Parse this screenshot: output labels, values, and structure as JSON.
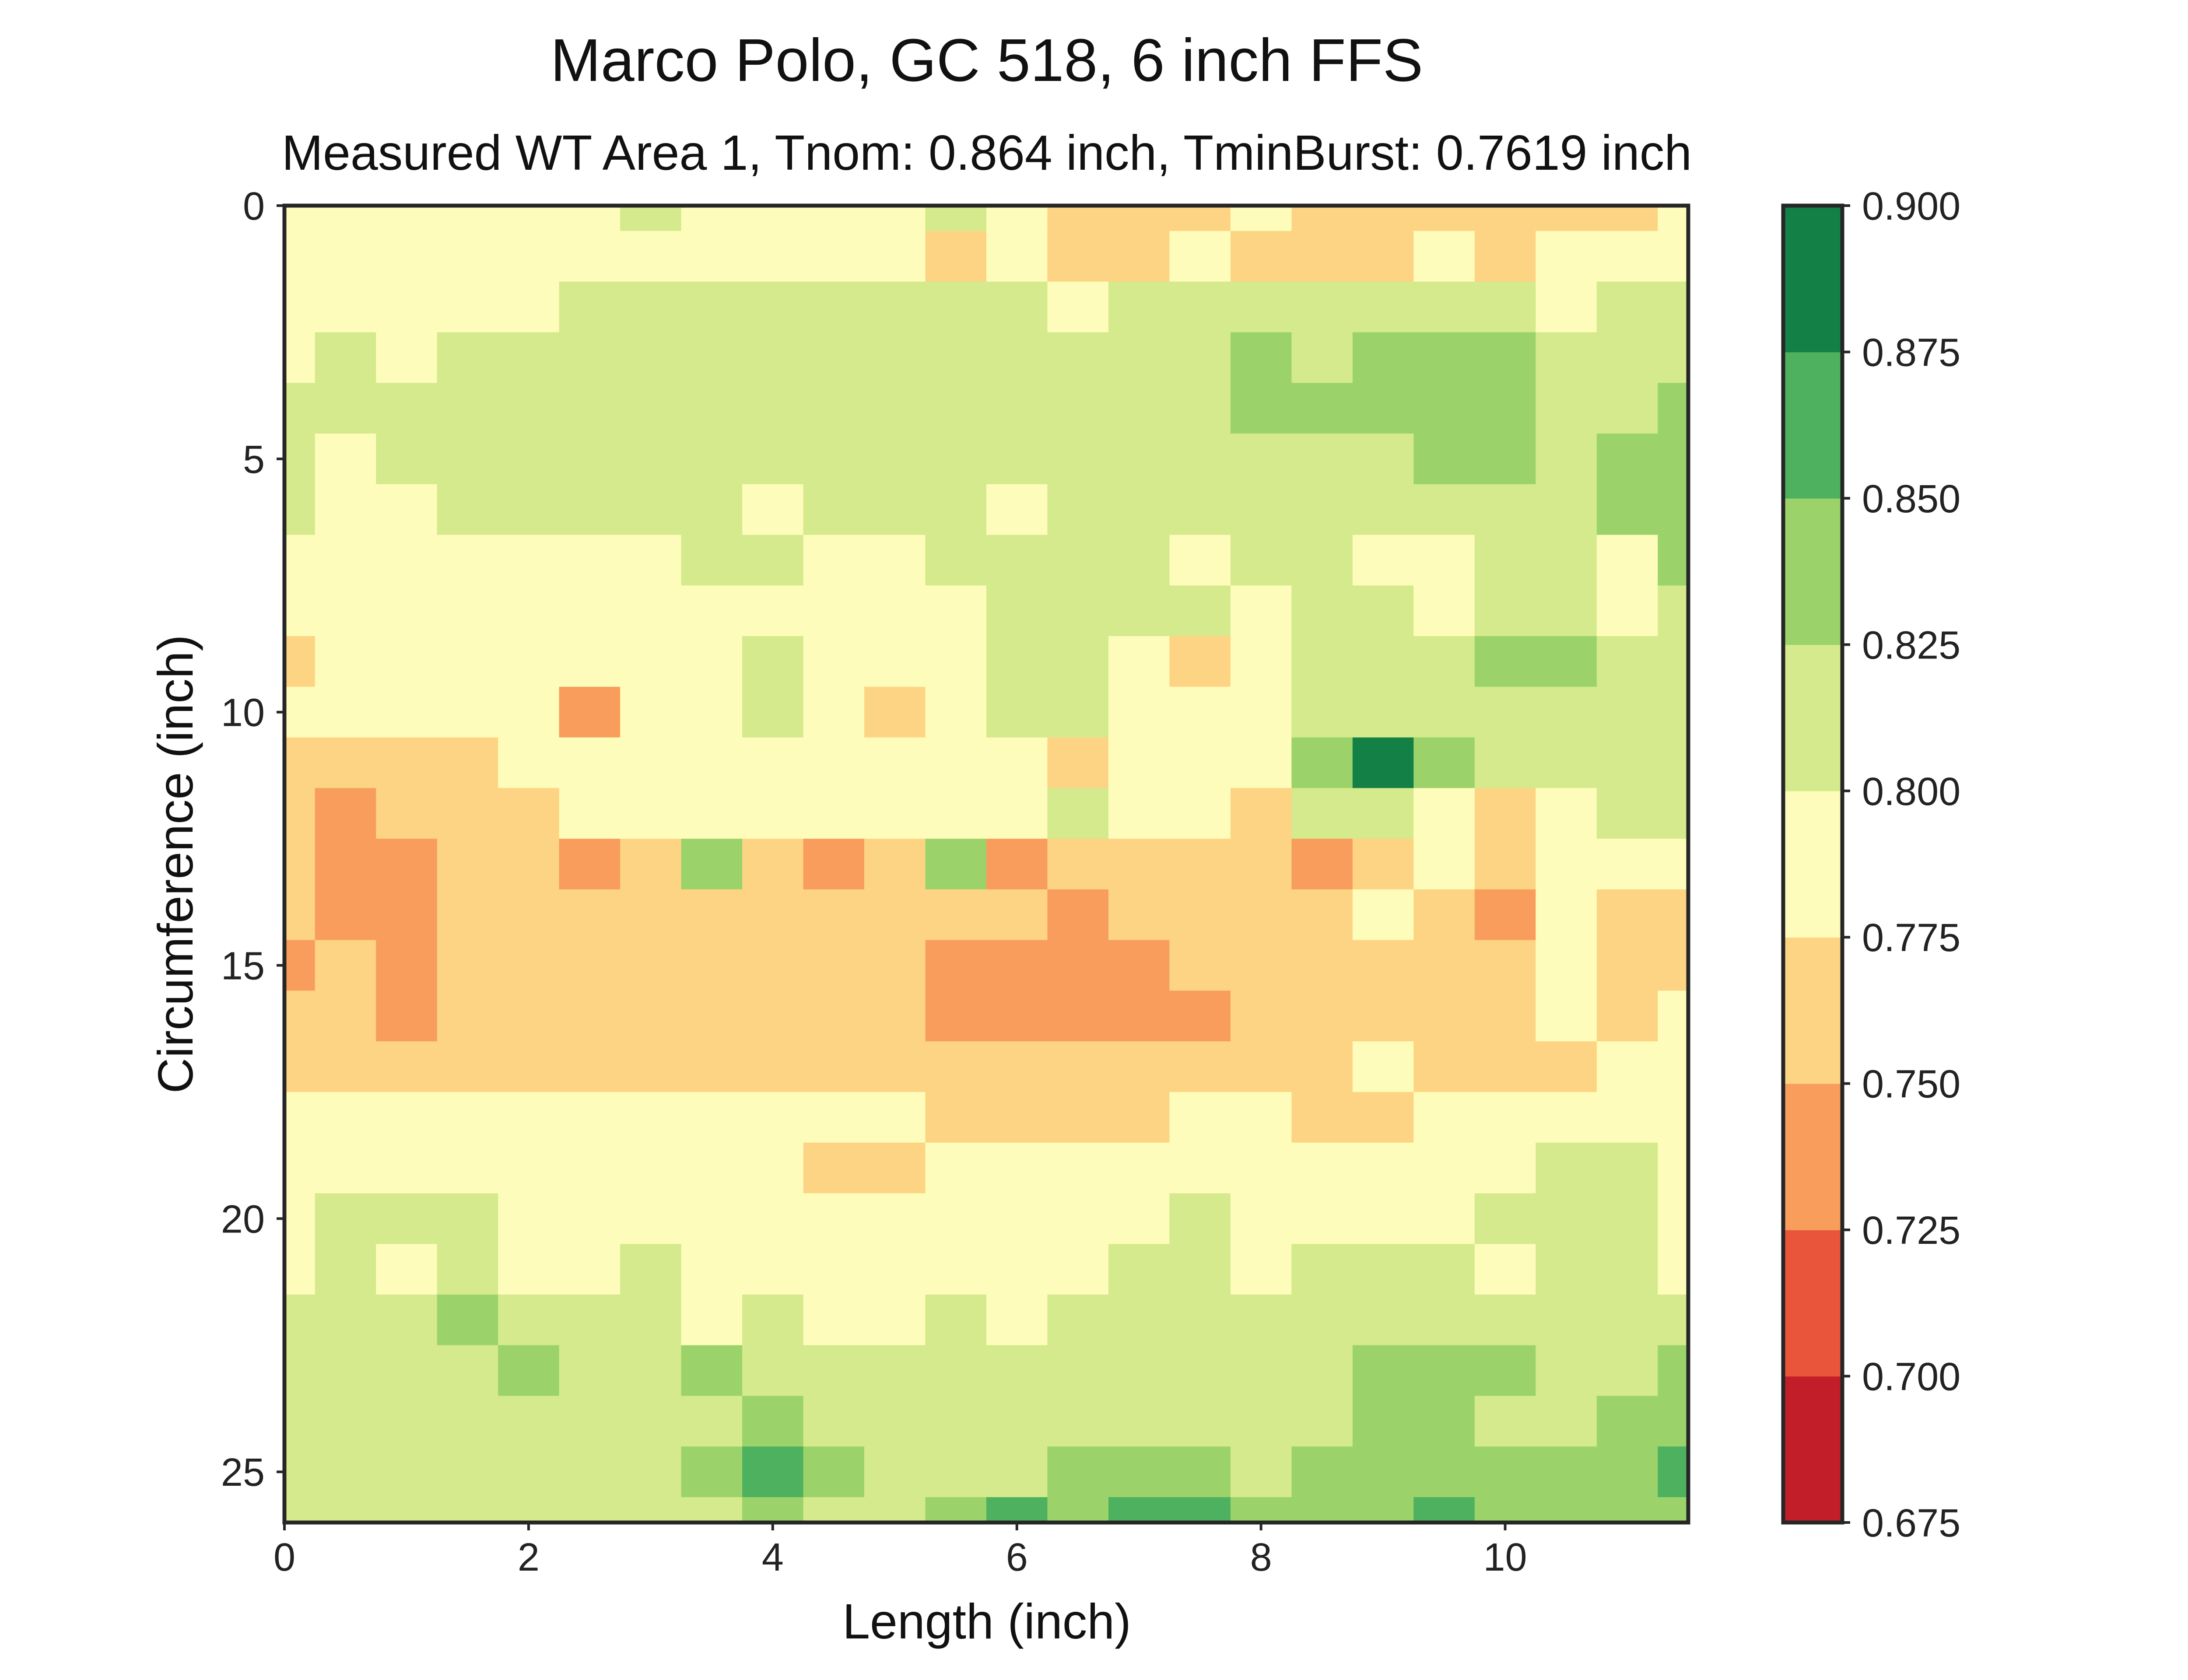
{
  "chart_data": {
    "type": "heatmap",
    "title": "Marco Polo, GC 518, 6 inch FFS",
    "subtitle": "Measured WT Area 1, Tnom: 0.864 inch, TminBurst: 0.7619 inch",
    "xlabel": "Length (inch)",
    "ylabel": "Circumference (inch)",
    "xlim": [
      0,
      11.5
    ],
    "ylim": [
      26,
      0
    ],
    "x_ticks": [
      "0",
      "2",
      "4",
      "6",
      "8",
      "10"
    ],
    "x_tick_values": [
      0,
      2,
      4,
      6,
      8,
      10
    ],
    "y_ticks": [
      "0",
      "5",
      "10",
      "15",
      "20",
      "25"
    ],
    "y_tick_values": [
      0,
      5,
      10,
      15,
      20,
      25
    ],
    "colorbar": {
      "levels": [
        0.675,
        0.7,
        0.725,
        0.75,
        0.775,
        0.8,
        0.825,
        0.85,
        0.875,
        0.9
      ],
      "labels": [
        "0.675",
        "0.700",
        "0.725",
        "0.750",
        "0.775",
        "0.800",
        "0.825",
        "0.850",
        "0.875",
        "0.900"
      ],
      "colors": [
        "#c11e2a",
        "#e8553a",
        "#f89d5b",
        "#fdd484",
        "#fefcbb",
        "#d4ea8c",
        "#9bd36a",
        "#4eb15f",
        "#138045"
      ]
    },
    "x_step": 0.5,
    "y_step": 1,
    "grid": false,
    "z": [
      [
        0.79,
        0.79,
        0.79,
        0.795,
        0.79,
        0.79,
        0.8,
        0.79,
        0.79,
        0.79,
        0.79,
        0.8,
        0.785,
        0.77,
        0.77,
        0.77,
        0.78,
        0.77,
        0.765,
        0.77,
        0.76,
        0.765,
        0.76,
        0.79
      ],
      [
        0.79,
        0.79,
        0.79,
        0.79,
        0.79,
        0.79,
        0.79,
        0.79,
        0.78,
        0.78,
        0.78,
        0.77,
        0.78,
        0.77,
        0.765,
        0.78,
        0.77,
        0.765,
        0.77,
        0.78,
        0.77,
        0.78,
        0.79,
        0.79
      ],
      [
        0.79,
        0.785,
        0.78,
        0.79,
        0.795,
        0.8,
        0.805,
        0.805,
        0.8,
        0.805,
        0.81,
        0.8,
        0.805,
        0.795,
        0.8,
        0.8,
        0.8,
        0.805,
        0.805,
        0.805,
        0.8,
        0.79,
        0.8,
        0.805
      ],
      [
        0.79,
        0.8,
        0.795,
        0.805,
        0.81,
        0.81,
        0.815,
        0.815,
        0.81,
        0.81,
        0.81,
        0.81,
        0.815,
        0.815,
        0.82,
        0.82,
        0.825,
        0.82,
        0.825,
        0.825,
        0.825,
        0.82,
        0.815,
        0.82
      ],
      [
        0.8,
        0.805,
        0.81,
        0.81,
        0.81,
        0.815,
        0.815,
        0.81,
        0.81,
        0.815,
        0.815,
        0.815,
        0.815,
        0.81,
        0.815,
        0.82,
        0.825,
        0.83,
        0.83,
        0.83,
        0.825,
        0.815,
        0.82,
        0.83
      ],
      [
        0.8,
        0.79,
        0.8,
        0.81,
        0.81,
        0.81,
        0.81,
        0.81,
        0.815,
        0.815,
        0.805,
        0.815,
        0.81,
        0.815,
        0.81,
        0.81,
        0.815,
        0.82,
        0.82,
        0.825,
        0.825,
        0.815,
        0.825,
        0.83
      ],
      [
        0.8,
        0.795,
        0.79,
        0.805,
        0.81,
        0.81,
        0.805,
        0.8,
        0.79,
        0.81,
        0.8,
        0.81,
        0.79,
        0.81,
        0.8,
        0.805,
        0.81,
        0.815,
        0.815,
        0.81,
        0.815,
        0.82,
        0.825,
        0.83
      ],
      [
        0.79,
        0.785,
        0.79,
        0.78,
        0.79,
        0.79,
        0.79,
        0.8,
        0.8,
        0.79,
        0.79,
        0.8,
        0.805,
        0.815,
        0.81,
        0.795,
        0.8,
        0.8,
        0.79,
        0.79,
        0.81,
        0.8,
        0.79,
        0.825
      ],
      [
        0.79,
        0.78,
        0.79,
        0.78,
        0.79,
        0.785,
        0.79,
        0.79,
        0.79,
        0.79,
        0.795,
        0.785,
        0.8,
        0.82,
        0.815,
        0.8,
        0.79,
        0.8,
        0.8,
        0.795,
        0.815,
        0.81,
        0.79,
        0.82
      ],
      [
        0.77,
        0.79,
        0.79,
        0.78,
        0.79,
        0.785,
        0.785,
        0.79,
        0.8,
        0.795,
        0.795,
        0.79,
        0.805,
        0.81,
        0.79,
        0.77,
        0.79,
        0.8,
        0.805,
        0.81,
        0.84,
        0.825,
        0.8,
        0.82
      ],
      [
        0.78,
        0.79,
        0.79,
        0.785,
        0.79,
        0.74,
        0.79,
        0.79,
        0.815,
        0.79,
        0.77,
        0.79,
        0.805,
        0.805,
        0.79,
        0.795,
        0.79,
        0.81,
        0.815,
        0.81,
        0.82,
        0.815,
        0.82,
        0.815
      ],
      [
        0.77,
        0.76,
        0.765,
        0.77,
        0.785,
        0.79,
        0.79,
        0.79,
        0.79,
        0.79,
        0.79,
        0.79,
        0.79,
        0.765,
        0.79,
        0.79,
        0.79,
        0.83,
        0.89,
        0.84,
        0.82,
        0.815,
        0.82,
        0.82
      ],
      [
        0.76,
        0.74,
        0.76,
        0.76,
        0.77,
        0.79,
        0.79,
        0.79,
        0.79,
        0.79,
        0.78,
        0.79,
        0.79,
        0.815,
        0.785,
        0.78,
        0.77,
        0.815,
        0.805,
        0.795,
        0.765,
        0.79,
        0.8,
        0.81
      ],
      [
        0.76,
        0.74,
        0.745,
        0.76,
        0.77,
        0.74,
        0.76,
        0.83,
        0.77,
        0.74,
        0.77,
        0.83,
        0.74,
        0.765,
        0.76,
        0.77,
        0.76,
        0.74,
        0.765,
        0.775,
        0.765,
        0.775,
        0.79,
        0.79
      ],
      [
        0.76,
        0.745,
        0.745,
        0.76,
        0.76,
        0.76,
        0.76,
        0.76,
        0.76,
        0.76,
        0.76,
        0.76,
        0.76,
        0.74,
        0.755,
        0.76,
        0.76,
        0.77,
        0.79,
        0.765,
        0.735,
        0.785,
        0.77,
        0.76
      ],
      [
        0.74,
        0.76,
        0.745,
        0.76,
        0.76,
        0.76,
        0.76,
        0.76,
        0.76,
        0.76,
        0.76,
        0.745,
        0.74,
        0.74,
        0.74,
        0.75,
        0.76,
        0.76,
        0.76,
        0.765,
        0.765,
        0.78,
        0.77,
        0.76
      ],
      [
        0.76,
        0.76,
        0.745,
        0.76,
        0.76,
        0.76,
        0.76,
        0.76,
        0.76,
        0.76,
        0.76,
        0.74,
        0.74,
        0.74,
        0.74,
        0.74,
        0.75,
        0.76,
        0.765,
        0.77,
        0.77,
        0.78,
        0.76,
        0.775
      ],
      [
        0.765,
        0.77,
        0.77,
        0.765,
        0.765,
        0.76,
        0.76,
        0.76,
        0.765,
        0.765,
        0.765,
        0.76,
        0.755,
        0.76,
        0.76,
        0.76,
        0.76,
        0.77,
        0.79,
        0.77,
        0.77,
        0.755,
        0.78,
        0.79
      ],
      [
        0.79,
        0.79,
        0.79,
        0.79,
        0.79,
        0.79,
        0.79,
        0.79,
        0.79,
        0.78,
        0.78,
        0.77,
        0.77,
        0.77,
        0.77,
        0.775,
        0.78,
        0.77,
        0.77,
        0.775,
        0.79,
        0.79,
        0.79,
        0.79
      ],
      [
        0.79,
        0.79,
        0.79,
        0.79,
        0.79,
        0.79,
        0.79,
        0.79,
        0.785,
        0.77,
        0.77,
        0.78,
        0.79,
        0.79,
        0.79,
        0.79,
        0.79,
        0.79,
        0.79,
        0.79,
        0.79,
        0.805,
        0.81,
        0.79
      ],
      [
        0.79,
        0.805,
        0.81,
        0.805,
        0.79,
        0.79,
        0.79,
        0.79,
        0.78,
        0.78,
        0.78,
        0.79,
        0.79,
        0.79,
        0.795,
        0.805,
        0.79,
        0.79,
        0.79,
        0.79,
        0.8,
        0.81,
        0.81,
        0.79
      ],
      [
        0.79,
        0.8,
        0.79,
        0.8,
        0.79,
        0.79,
        0.8,
        0.79,
        0.79,
        0.79,
        0.79,
        0.79,
        0.79,
        0.795,
        0.81,
        0.805,
        0.795,
        0.8,
        0.8,
        0.8,
        0.79,
        0.8,
        0.8,
        0.79
      ],
      [
        0.805,
        0.81,
        0.805,
        0.83,
        0.81,
        0.81,
        0.81,
        0.79,
        0.8,
        0.79,
        0.79,
        0.8,
        0.795,
        0.8,
        0.815,
        0.81,
        0.81,
        0.8,
        0.805,
        0.81,
        0.805,
        0.81,
        0.8,
        0.815
      ],
      [
        0.81,
        0.81,
        0.81,
        0.81,
        0.84,
        0.815,
        0.815,
        0.83,
        0.82,
        0.815,
        0.81,
        0.81,
        0.81,
        0.81,
        0.81,
        0.81,
        0.81,
        0.805,
        0.825,
        0.825,
        0.83,
        0.815,
        0.81,
        0.84
      ],
      [
        0.81,
        0.81,
        0.81,
        0.81,
        0.81,
        0.81,
        0.815,
        0.815,
        0.825,
        0.815,
        0.81,
        0.815,
        0.815,
        0.815,
        0.81,
        0.815,
        0.82,
        0.81,
        0.84,
        0.83,
        0.815,
        0.82,
        0.83,
        0.845
      ],
      [
        0.8,
        0.81,
        0.81,
        0.81,
        0.81,
        0.81,
        0.815,
        0.83,
        0.85,
        0.83,
        0.815,
        0.82,
        0.82,
        0.825,
        0.83,
        0.825,
        0.82,
        0.825,
        0.84,
        0.83,
        0.83,
        0.83,
        0.83,
        0.85
      ],
      [
        0.805,
        0.815,
        0.81,
        0.81,
        0.815,
        0.815,
        0.81,
        0.82,
        0.84,
        0.82,
        0.815,
        0.825,
        0.86,
        0.825,
        0.85,
        0.87,
        0.84,
        0.83,
        0.84,
        0.86,
        0.83,
        0.83,
        0.84,
        0.84
      ],
      [
        0.79,
        0.795,
        0.8,
        0.805,
        0.81,
        0.815,
        0.815,
        0.82,
        0.82,
        0.82,
        0.815,
        0.82,
        0.815,
        0.82,
        0.83,
        0.83,
        0.83,
        0.82,
        0.83,
        0.83,
        0.83,
        0.83,
        0.845,
        0.85
      ]
    ]
  }
}
